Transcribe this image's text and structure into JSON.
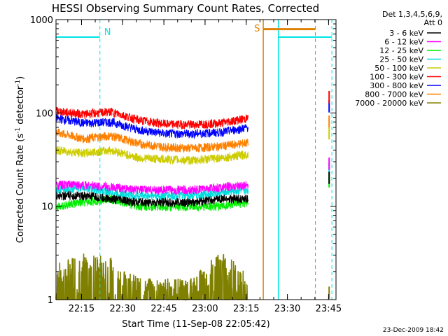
{
  "chart_data": {
    "type": "line",
    "title": "HESSI Observing Summary Count Rates, Corrected",
    "xlabel": "Start Time (11-Sep-08 22:05:42)",
    "ylabel_main": "Corrected Count Rate (s",
    "ylabel_sup1": "-1",
    "ylabel_mid": " detector",
    "ylabel_sup2": "-1",
    "ylabel_end": ")",
    "y_scale": "log",
    "ylim": [
      1,
      1000
    ],
    "xlim_minutes": [
      0,
      102
    ],
    "y_ticks": [
      "1",
      "10",
      "100",
      "1000"
    ],
    "x_ticks": [
      {
        "label": "22:15",
        "minute": 9.3
      },
      {
        "label": "22:30",
        "minute": 24.3
      },
      {
        "label": "22:45",
        "minute": 39.3
      },
      {
        "label": "23:00",
        "minute": 54.3
      },
      {
        "label": "23:15",
        "minute": 69.3
      },
      {
        "label": "23:30",
        "minute": 84.3
      },
      {
        "label": "23:45",
        "minute": 99.3
      }
    ],
    "legend_header": [
      "Det 1,3,4,5,6,9,",
      "Att 0"
    ],
    "legend_placement": "right",
    "timestamp": "23-Dec-2009 18:42",
    "markers": [
      {
        "label": "N",
        "color": "#00e5e5",
        "minute": 16
      },
      {
        "label": "S",
        "color": "#e08000",
        "minute": 69
      }
    ],
    "series": [
      {
        "name": "3 - 6 keV",
        "color": "#000000",
        "values": [
          13,
          13,
          12,
          11,
          11,
          11,
          12,
          12
        ]
      },
      {
        "name": "6 - 12 keV",
        "color": "#ff00ff",
        "values": [
          17,
          17,
          16,
          15,
          15,
          15,
          16,
          17
        ]
      },
      {
        "name": "12 - 25 keV",
        "color": "#00ee00",
        "values": [
          10,
          11,
          12,
          10,
          10,
          10,
          10,
          11
        ]
      },
      {
        "name": "25 - 50 keV",
        "color": "#00dddd",
        "values": [
          15,
          16,
          14,
          13,
          13,
          13,
          14,
          15
        ]
      },
      {
        "name": "50 - 100 keV",
        "color": "#cccc00",
        "values": [
          40,
          37,
          40,
          33,
          32,
          31,
          33,
          36
        ]
      },
      {
        "name": "100 - 300 keV",
        "color": "#ff0000",
        "values": [
          105,
          97,
          103,
          84,
          76,
          75,
          78,
          88
        ]
      },
      {
        "name": "300 - 800 keV",
        "color": "#0000ff",
        "values": [
          88,
          78,
          80,
          66,
          60,
          60,
          62,
          70
        ]
      },
      {
        "name": "800 - 7000 keV",
        "color": "#ff8000",
        "values": [
          62,
          53,
          57,
          47,
          43,
          42,
          44,
          48
        ]
      },
      {
        "name": "7000 - 20000 keV",
        "color": "#808000",
        "values": [
          1.5,
          2.2,
          1.8,
          1.0,
          1.0,
          1.0,
          2.1,
          1.2
        ]
      }
    ],
    "series_minutes": [
      0,
      10,
      20,
      30,
      40,
      50,
      60,
      70
    ]
  }
}
